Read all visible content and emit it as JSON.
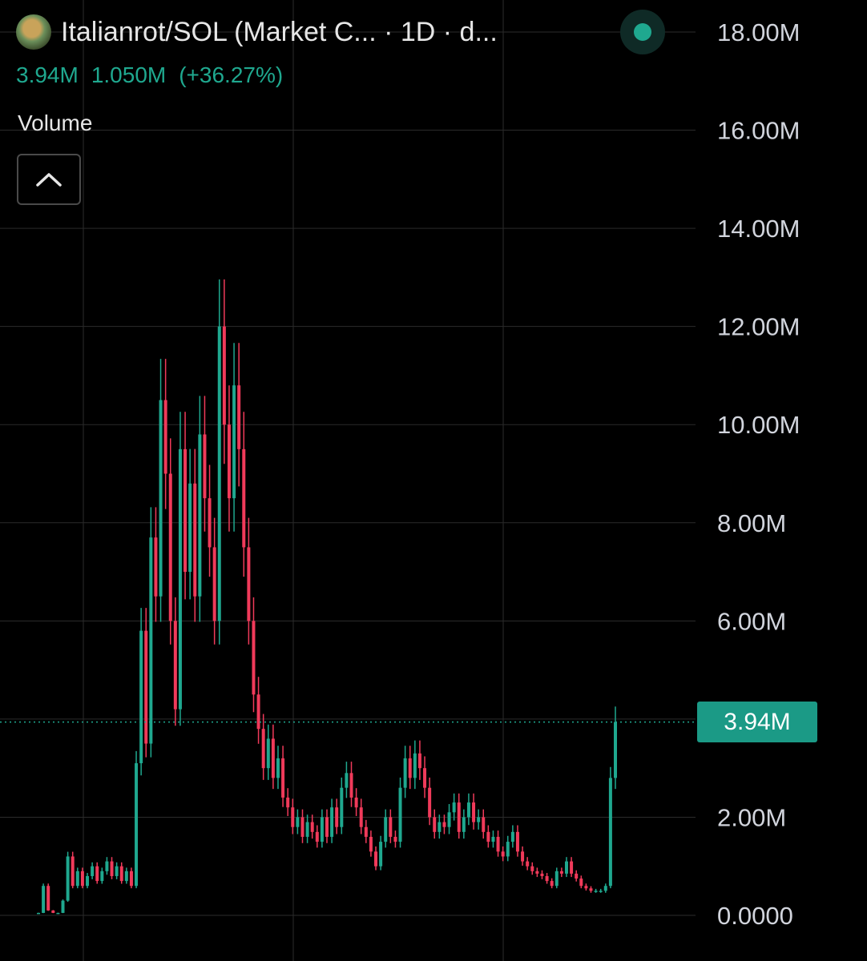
{
  "header": {
    "title": "Italianrot/SOL (Market C... · 1D · d...",
    "value_current": "3.94M",
    "value_change": "1.050M",
    "value_change_pct": "(+36.27%)",
    "volume_label": "Volume"
  },
  "price_tag": "3.94M",
  "colors": {
    "up": "#1fa88f",
    "down": "#f03a5a",
    "background": "#000000",
    "grid": "#2b2b2b",
    "text": "#d1d4dc"
  },
  "icons": {
    "avatar": "token-avatar",
    "status": "live-status-dot",
    "collapse": "chevron-up-icon"
  },
  "chart_data": {
    "type": "candlestick",
    "y_unit": "Market Cap",
    "ylim": [
      0,
      18000000
    ],
    "y_ticks": [
      "18.00M",
      "16.00M",
      "14.00M",
      "12.00M",
      "10.00M",
      "8.00M",
      "6.00M",
      "4.00M",
      "2.00M",
      "0.0000"
    ],
    "current_value": 3940000,
    "grid": true,
    "close_series": [
      0.05,
      0.6,
      0.1,
      0.05,
      0.05,
      0.3,
      1.2,
      0.6,
      0.9,
      0.6,
      0.8,
      1.0,
      0.7,
      0.9,
      1.1,
      0.8,
      1.0,
      0.7,
      0.9,
      0.6,
      3.1,
      5.8,
      3.5,
      7.7,
      6.5,
      10.5,
      9.0,
      6.0,
      4.2,
      9.5,
      7.0,
      8.8,
      6.5,
      9.8,
      8.5,
      7.5,
      6.0,
      12.0,
      10.0,
      8.5,
      10.8,
      9.5,
      7.5,
      6.0,
      4.5,
      3.8,
      3.0,
      3.6,
      2.8,
      3.2,
      2.4,
      2.2,
      1.8,
      2.0,
      1.6,
      1.9,
      1.7,
      1.5,
      2.0,
      1.6,
      2.2,
      1.8,
      2.6,
      2.9,
      2.4,
      2.2,
      1.8,
      1.6,
      1.3,
      1.0,
      1.5,
      2.0,
      1.6,
      1.5,
      2.6,
      3.2,
      2.8,
      3.3,
      3.0,
      2.6,
      2.0,
      1.7,
      1.9,
      1.8,
      2.1,
      2.3,
      1.7,
      2.0,
      2.3,
      1.9,
      2.0,
      1.7,
      1.5,
      1.6,
      1.3,
      1.2,
      1.5,
      1.7,
      1.3,
      1.1,
      1.0,
      0.9,
      0.85,
      0.8,
      0.7,
      0.6,
      0.9,
      0.85,
      1.1,
      0.85,
      0.75,
      0.6,
      0.55,
      0.5,
      0.5,
      0.5,
      0.6,
      2.8,
      3.94
    ]
  }
}
